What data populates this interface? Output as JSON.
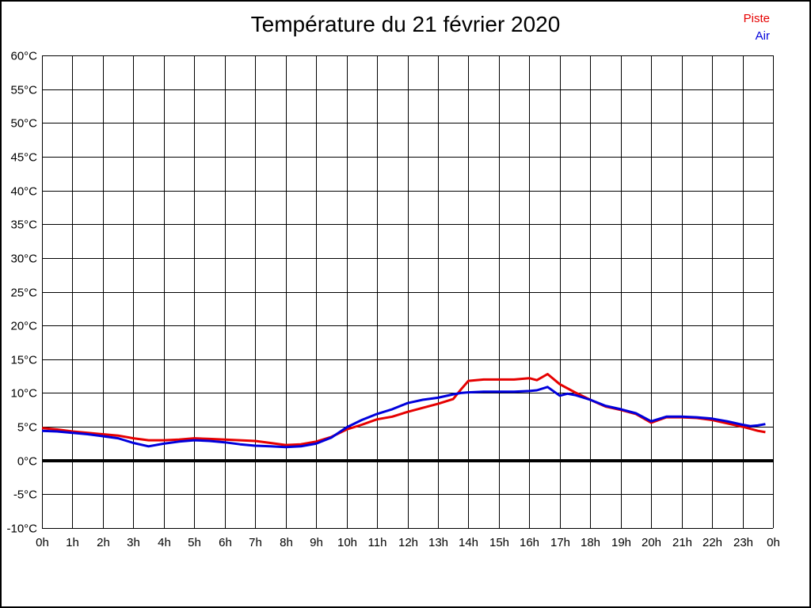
{
  "title": "Température du 21 février 2020",
  "legend": [
    {
      "label": "Piste",
      "color": "#e60000"
    },
    {
      "label": "Air",
      "color": "#0000dc"
    }
  ],
  "chart_data": {
    "type": "line",
    "title": "Température du 21 février 2020",
    "xlabel": "",
    "ylabel": "",
    "xlim": [
      0,
      24
    ],
    "ylim": [
      -10,
      60
    ],
    "y_tick_step": 5,
    "x_tick_step": 1,
    "grid": true,
    "zero_line_at": 0,
    "legend_position": "top-right",
    "x_tick_labels": [
      "0h",
      "1h",
      "2h",
      "3h",
      "4h",
      "5h",
      "6h",
      "7h",
      "8h",
      "9h",
      "10h",
      "11h",
      "12h",
      "13h",
      "14h",
      "15h",
      "16h",
      "17h",
      "18h",
      "19h",
      "20h",
      "21h",
      "22h",
      "23h",
      "0h"
    ],
    "y_tick_labels": [
      "60°C",
      "55°C",
      "50°C",
      "45°C",
      "40°C",
      "35°C",
      "30°C",
      "25°C",
      "20°C",
      "15°C",
      "10°C",
      "5°C",
      "0°C",
      "-5°C",
      "-10°C"
    ],
    "x": [
      0,
      0.5,
      1,
      1.5,
      2,
      2.5,
      3,
      3.5,
      4,
      4.5,
      5,
      5.5,
      6,
      6.5,
      7,
      7.5,
      8,
      8.5,
      9,
      9.5,
      10,
      10.5,
      11,
      11.5,
      12,
      12.5,
      13,
      13.5,
      13.75,
      14,
      14.5,
      15,
      15.5,
      16,
      16.25,
      16.6,
      17,
      17.25,
      17.5,
      18,
      18.5,
      19,
      19.5,
      20,
      20.5,
      21,
      21.5,
      22,
      22.5,
      23,
      23.25,
      23.5,
      23.75
    ],
    "series": [
      {
        "name": "Piste",
        "color": "#e60000",
        "values": [
          4.8,
          4.6,
          4.3,
          4.1,
          3.9,
          3.7,
          3.3,
          3.0,
          3.0,
          3.1,
          3.3,
          3.2,
          3.1,
          3.0,
          2.9,
          2.6,
          2.3,
          2.4,
          2.8,
          3.5,
          4.6,
          5.3,
          6.1,
          6.5,
          7.2,
          7.8,
          8.4,
          9.1,
          10.5,
          11.8,
          12.0,
          12.0,
          12.0,
          12.2,
          11.9,
          12.8,
          11.3,
          10.7,
          10.1,
          9.0,
          8.0,
          7.5,
          6.9,
          5.6,
          6.4,
          6.4,
          6.3,
          6.0,
          5.5,
          5.0,
          4.7,
          4.4,
          4.2
        ]
      },
      {
        "name": "Air",
        "color": "#0000dc",
        "values": [
          4.4,
          4.3,
          4.1,
          3.9,
          3.6,
          3.3,
          2.6,
          2.1,
          2.5,
          2.8,
          3.0,
          2.9,
          2.7,
          2.4,
          2.2,
          2.1,
          2.0,
          2.1,
          2.5,
          3.4,
          4.9,
          6.0,
          6.9,
          7.6,
          8.5,
          9.0,
          9.3,
          9.8,
          10.0,
          10.1,
          10.2,
          10.2,
          10.2,
          10.3,
          10.4,
          10.9,
          9.6,
          9.9,
          9.7,
          9.0,
          8.1,
          7.6,
          7.0,
          5.8,
          6.5,
          6.5,
          6.4,
          6.2,
          5.8,
          5.3,
          5.1,
          5.2,
          5.4
        ]
      }
    ]
  }
}
